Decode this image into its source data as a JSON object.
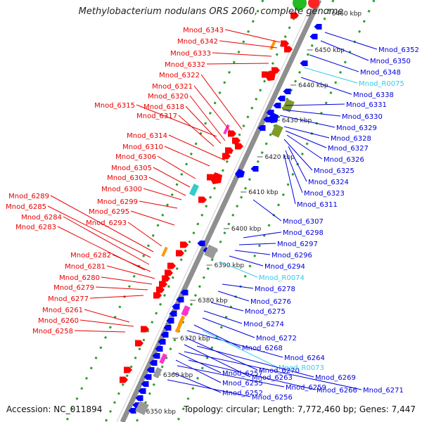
{
  "title": "Methylobacterium nodulans ORS 2060, complete genome",
  "footer": {
    "accession": "Accession: NC_011894",
    "topology": "Topology: circular; Length: 7,772,460 bp; Genes: 7,447"
  },
  "colors": {
    "left_label": "#e80000",
    "right_label": "#0000dd",
    "rna_label": "#33ccee",
    "dots": "#2a9d2a",
    "axis": "#8f8f8f",
    "gene_red": "#ff0000",
    "gene_blue": "#0000ff",
    "orange": "#ff9900",
    "magenta": "#ff33cc",
    "olive": "#7f9b28",
    "cyan": "#33cccc",
    "gray": "#9a9a9a"
  },
  "kbp_ticks": [
    "6460 kbp",
    "6450 kbp",
    "6440 kbp",
    "6430 kbp",
    "6420 kbp",
    "6410 kbp",
    "6400 kbp",
    "6390 kbp",
    "6380 kbp",
    "6370 kbp",
    "6360 kbp",
    "6350 kbp"
  ],
  "left_labels": [
    "Mnod_6343",
    "Mnod_6342",
    "Mnod_6333",
    "Mnod_6332",
    "Mnod_6322",
    "Mnod_6321",
    "Mnod_6320",
    "Mnod_6318",
    "Mnod_6315",
    "Mnod_6317",
    "Mnod_6314",
    "Mnod_6310",
    "Mnod_6306",
    "Mnod_6305",
    "Mnod_6303",
    "Mnod_6300",
    "Mnod_6299",
    "Mnod_6289",
    "Mnod_6285",
    "Mnod_6295",
    "Mnod_6284",
    "Mnod_6293",
    "Mnod_6283",
    "Mnod_6282",
    "Mnod_6281",
    "Mnod_6280",
    "Mnod_6279",
    "Mnod_6277",
    "Mnod_6261",
    "Mnod_6260",
    "Mnod_6258"
  ],
  "right_labels": [
    "Mnod_6352",
    "Mnod_6350",
    "Mnod_6348",
    "Mnod_R0075",
    "Mnod_6338",
    "Mnod_6331",
    "Mnod_6330",
    "Mnod_6329",
    "Mnod_6328",
    "Mnod_6327",
    "Mnod_6326",
    "Mnod_6325",
    "Mnod_6324",
    "Mnod_6323",
    "Mnod_6311",
    "Mnod_6307",
    "Mnod_6298",
    "Mnod_6297",
    "Mnod_6296",
    "Mnod_6294",
    "Mnod_R0074",
    "Mnod_6278",
    "Mnod_6276",
    "Mnod_6275",
    "Mnod_6274",
    "Mnod_6272",
    "Mnod_6268",
    "Mnod_6264",
    "Mnod_6270",
    "Mnod_R0073",
    "Mnod_6263",
    "Mnod_6257",
    "Mnod_6269",
    "Mnod_6255",
    "Mnod_6259",
    "Mnod_6266",
    "Mnod_6271",
    "Mnod_6252",
    "Mnod_6256"
  ]
}
